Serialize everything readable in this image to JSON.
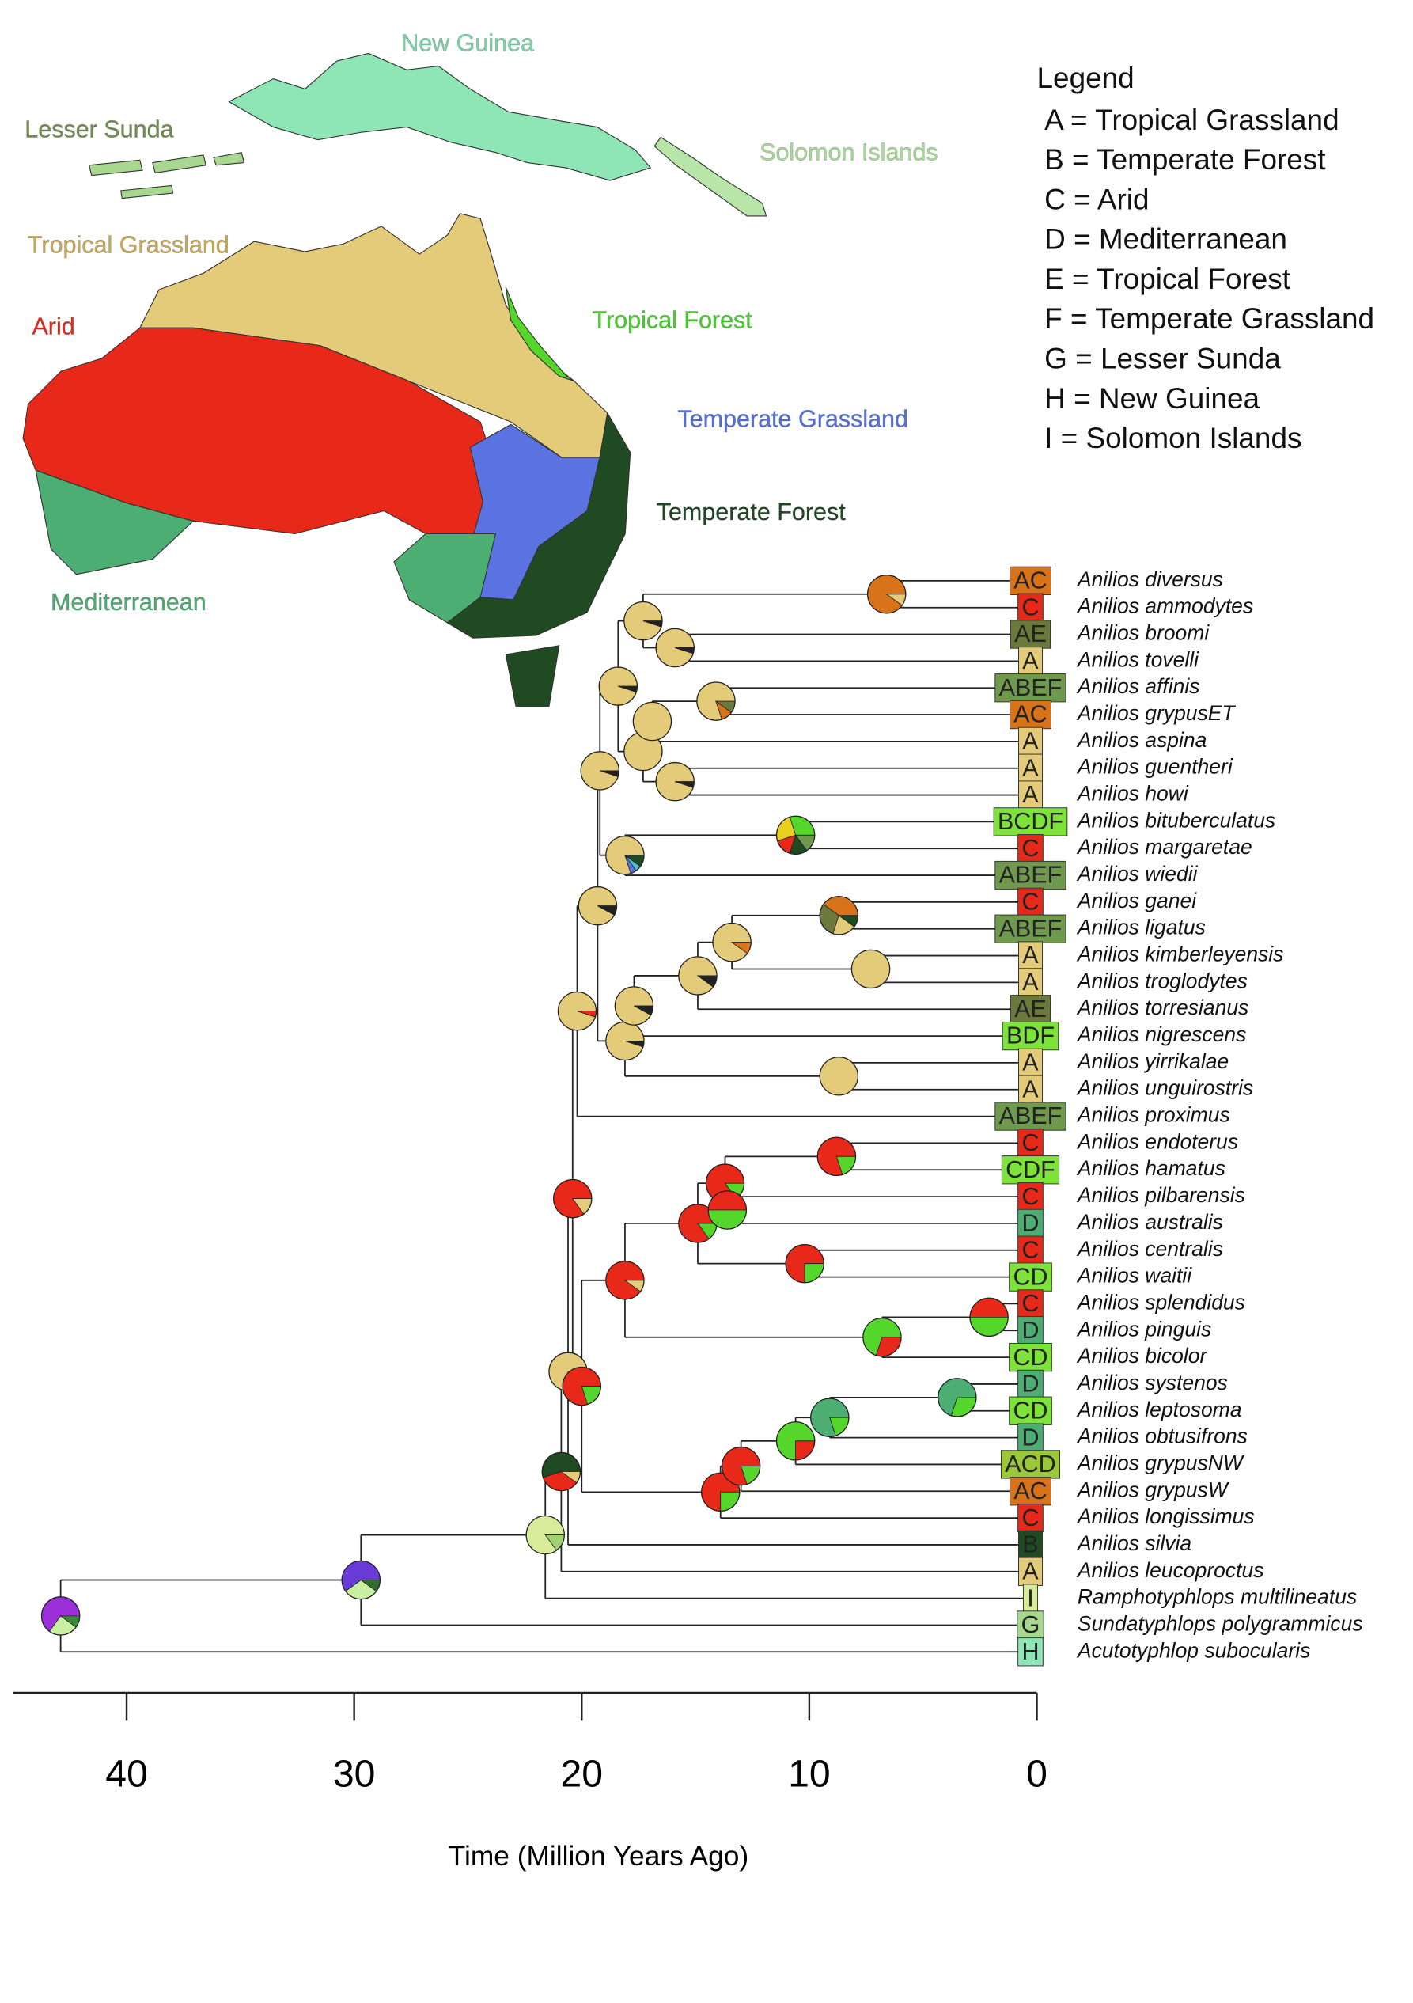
{
  "map": {
    "labels": [
      "New Guinea",
      "Lesser Sunda",
      "Solomon Islands",
      "Tropical Grassland",
      "Arid",
      "Tropical Forest",
      "Temperate Grassland",
      "Temperate Forest",
      "Mediterranean"
    ]
  },
  "legend": {
    "title": "Legend",
    "items": [
      "A = Tropical Grassland",
      "B = Temperate Forest",
      "C = Arid",
      "D = Mediterranean",
      "E = Tropical Forest",
      "F = Temperate Grassland",
      "G = Lesser Sunda",
      "H = New Guinea",
      "I = Solomon Islands"
    ]
  },
  "tree": {
    "tips": [
      {
        "name": "Anilios diversus",
        "area": "AC",
        "color": "#d8731a"
      },
      {
        "name": "Anilios ammodytes",
        "area": "C",
        "color": "#e8291a"
      },
      {
        "name": "Anilios broomi",
        "area": "AE",
        "color": "#6b7a3a"
      },
      {
        "name": "Anilios tovelli",
        "area": "A",
        "color": "#e3cb7a"
      },
      {
        "name": "Anilios affinis",
        "area": "ABEF",
        "color": "#6f9a4d"
      },
      {
        "name": "Anilios grypusET",
        "area": "AC",
        "color": "#d8731a"
      },
      {
        "name": "Anilios aspina",
        "area": "A",
        "color": "#e3cb7a"
      },
      {
        "name": "Anilios guentheri",
        "area": "A",
        "color": "#e3cb7a"
      },
      {
        "name": "Anilios howi",
        "area": "A",
        "color": "#e3cb7a"
      },
      {
        "name": "Anilios bituberculatus",
        "area": "BCDF",
        "color": "#7de23a"
      },
      {
        "name": "Anilios margaretae",
        "area": "C",
        "color": "#e8291a"
      },
      {
        "name": "Anilios wiedii",
        "area": "ABEF",
        "color": "#6f9a4d"
      },
      {
        "name": "Anilios ganei",
        "area": "C",
        "color": "#e8291a"
      },
      {
        "name": "Anilios ligatus",
        "area": "ABEF",
        "color": "#6f9a4d"
      },
      {
        "name": "Anilios kimberleyensis",
        "area": "A",
        "color": "#e3cb7a"
      },
      {
        "name": "Anilios troglodytes",
        "area": "A",
        "color": "#e3cb7a"
      },
      {
        "name": "Anilios torresianus",
        "area": "AE",
        "color": "#6b7a3a"
      },
      {
        "name": "Anilios nigrescens",
        "area": "BDF",
        "color": "#7de23a"
      },
      {
        "name": "Anilios yirrikalae",
        "area": "A",
        "color": "#e3cb7a"
      },
      {
        "name": "Anilios unguirostris",
        "area": "A",
        "color": "#e3cb7a"
      },
      {
        "name": "Anilios proximus",
        "area": "ABEF",
        "color": "#6f9a4d"
      },
      {
        "name": "Anilios endoterus",
        "area": "C",
        "color": "#e8291a"
      },
      {
        "name": "Anilios hamatus",
        "area": "CDF",
        "color": "#7de23a"
      },
      {
        "name": "Anilios pilbarensis",
        "area": "C",
        "color": "#e8291a"
      },
      {
        "name": "Anilios australis",
        "area": "D",
        "color": "#4cae72"
      },
      {
        "name": "Anilios centralis",
        "area": "C",
        "color": "#e8291a"
      },
      {
        "name": "Anilios waitii",
        "area": "CD",
        "color": "#7de23a"
      },
      {
        "name": "Anilios splendidus",
        "area": "C",
        "color": "#e8291a"
      },
      {
        "name": "Anilios pinguis",
        "area": "D",
        "color": "#4cae72"
      },
      {
        "name": "Anilios bicolor",
        "area": "CD",
        "color": "#7de23a"
      },
      {
        "name": "Anilios systenos",
        "area": "D",
        "color": "#4cae72"
      },
      {
        "name": "Anilios leptosoma",
        "area": "CD",
        "color": "#7de23a"
      },
      {
        "name": "Anilios obtusifrons",
        "area": "D",
        "color": "#4cae72"
      },
      {
        "name": "Anilios grypusNW",
        "area": "ACD",
        "color": "#9ac83a"
      },
      {
        "name": "Anilios grypusW",
        "area": "AC",
        "color": "#d8731a"
      },
      {
        "name": "Anilios longissimus",
        "area": "C",
        "color": "#e8291a"
      },
      {
        "name": "Anilios silvia",
        "area": "B",
        "color": "#1f4a22"
      },
      {
        "name": "Anilios leucoproctus",
        "area": "A",
        "color": "#e3cb7a"
      },
      {
        "name": "Ramphotyphlops multilineatus",
        "area": "I",
        "color": "#d8eb9a"
      },
      {
        "name": "Sundatyphlops polygrammicus",
        "area": "G",
        "color": "#a8d890"
      },
      {
        "name": "Acutotyphlop subocularis",
        "area": "H",
        "color": "#8ee6b6"
      }
    ],
    "nodes": [
      {
        "age": 42.9,
        "children": [
          "t40",
          "n1"
        ],
        "pie": [
          {
            "share": 65,
            "color": "#9b30d9"
          },
          {
            "share": 25,
            "color": "#c8f0a0"
          },
          {
            "share": 10,
            "color": "#3a8a3a"
          }
        ]
      },
      {
        "age": 29.7,
        "children": [
          "t39",
          "n2"
        ],
        "pie": [
          {
            "share": 60,
            "color": "#6a3ad9"
          },
          {
            "share": 30,
            "color": "#c8f0a0"
          },
          {
            "share": 10,
            "color": "#2f6f2f"
          }
        ]
      },
      {
        "age": 21.6,
        "children": [
          "t38",
          "n3"
        ],
        "pie": [
          {
            "share": 85,
            "color": "#d8eb9a"
          },
          {
            "share": 15,
            "color": "#a0d070"
          }
        ]
      },
      {
        "age": 20.9,
        "children": [
          "t37",
          "n4"
        ],
        "pie": [
          {
            "share": 55,
            "color": "#1f4a22"
          },
          {
            "share": 35,
            "color": "#e8291a"
          },
          {
            "share": 10,
            "color": "#e3cb7a"
          }
        ]
      },
      {
        "age": 20.6,
        "children": [
          "t36",
          "n5"
        ],
        "pie": [
          {
            "share": 85,
            "color": "#e3cb7a"
          },
          {
            "share": 15,
            "color": "#e8291a"
          }
        ]
      },
      {
        "age": 20.4,
        "children": [
          "n6",
          "n26"
        ],
        "pie": [
          {
            "share": 85,
            "color": "#e8291a"
          },
          {
            "share": 15,
            "color": "#e3cb7a"
          }
        ]
      },
      {
        "age": 20.2,
        "children": [
          "n7",
          "t20"
        ],
        "pie": [
          {
            "share": 95,
            "color": "#e3cb7a"
          },
          {
            "share": 5,
            "color": "#e8291a"
          }
        ]
      },
      {
        "age": 19.3,
        "children": [
          "n8",
          "n19"
        ],
        "pie": [
          {
            "share": 92,
            "color": "#e3cb7a"
          },
          {
            "share": 8,
            "color": "#222222"
          }
        ]
      },
      {
        "age": 19.2,
        "children": [
          "n9",
          "n17"
        ],
        "pie": [
          {
            "share": 95,
            "color": "#e3cb7a"
          },
          {
            "share": 5,
            "color": "#222222"
          }
        ]
      },
      {
        "age": 18.4,
        "children": [
          "n10",
          "n13"
        ],
        "pie": [
          {
            "share": 95,
            "color": "#e3cb7a"
          },
          {
            "share": 5,
            "color": "#222222"
          }
        ]
      },
      {
        "age": 17.3,
        "children": [
          "n11",
          "n12"
        ],
        "pie": [
          {
            "share": 95,
            "color": "#e3cb7a"
          },
          {
            "share": 5,
            "color": "#222222"
          }
        ]
      },
      {
        "age": 6.6,
        "children": [
          "t0",
          "t1"
        ],
        "pie": [
          {
            "share": 90,
            "color": "#d8731a"
          },
          {
            "share": 10,
            "color": "#e3cb7a"
          }
        ]
      },
      {
        "age": 15.9,
        "children": [
          "t2",
          "t3"
        ],
        "pie": [
          {
            "share": 95,
            "color": "#e3cb7a"
          },
          {
            "share": 5,
            "color": "#222222"
          }
        ]
      },
      {
        "age": 17.3,
        "children": [
          "n14",
          "n16"
        ],
        "pie": [
          {
            "share": 100,
            "color": "#e3cb7a"
          }
        ]
      },
      {
        "age": 16.9,
        "children": [
          "n15",
          "t6"
        ],
        "pie": [
          {
            "share": 100,
            "color": "#e3cb7a"
          }
        ]
      },
      {
        "age": 14.1,
        "children": [
          "t4",
          "t5"
        ],
        "pie": [
          {
            "share": 80,
            "color": "#e3cb7a"
          },
          {
            "share": 10,
            "color": "#d8731a"
          },
          {
            "share": 10,
            "color": "#6b7a3a"
          }
        ]
      },
      {
        "age": 15.9,
        "children": [
          "t7",
          "t8"
        ],
        "pie": [
          {
            "share": 95,
            "color": "#e3cb7a"
          },
          {
            "share": 5,
            "color": "#222222"
          }
        ]
      },
      {
        "age": 18.1,
        "children": [
          "n18",
          "t11"
        ],
        "pie": [
          {
            "share": 80,
            "color": "#e3cb7a"
          },
          {
            "share": 5,
            "color": "#5a73e0"
          },
          {
            "share": 5,
            "color": "#4cc0d0"
          },
          {
            "share": 10,
            "color": "#1f4a22"
          }
        ]
      },
      {
        "age": 10.6,
        "children": [
          "t9",
          "t10"
        ],
        "pie": [
          {
            "share": 30,
            "color": "#55d62b"
          },
          {
            "share": 25,
            "color": "#e8d020"
          },
          {
            "share": 15,
            "color": "#e8291a"
          },
          {
            "share": 15,
            "color": "#1f4a22"
          },
          {
            "share": 15,
            "color": "#6f9a4d"
          }
        ]
      },
      {
        "age": 18.1,
        "children": [
          "n20",
          "n25"
        ],
        "pie": [
          {
            "share": 95,
            "color": "#e3cb7a"
          },
          {
            "share": 5,
            "color": "#222222"
          }
        ]
      },
      {
        "age": 17.7,
        "children": [
          "n21",
          "t17"
        ],
        "pie": [
          {
            "share": 92,
            "color": "#e3cb7a"
          },
          {
            "share": 8,
            "color": "#222222"
          }
        ]
      },
      {
        "age": 14.9,
        "children": [
          "n22",
          "t16"
        ],
        "pie": [
          {
            "share": 90,
            "color": "#e3cb7a"
          },
          {
            "share": 10,
            "color": "#222222"
          }
        ]
      },
      {
        "age": 13.4,
        "children": [
          "n23",
          "n24"
        ],
        "pie": [
          {
            "share": 90,
            "color": "#e3cb7a"
          },
          {
            "share": 10,
            "color": "#d8731a"
          }
        ]
      },
      {
        "age": 8.7,
        "children": [
          "t12",
          "t13"
        ],
        "pie": [
          {
            "share": 40,
            "color": "#d8731a"
          },
          {
            "share": 30,
            "color": "#6b7a3a"
          },
          {
            "share": 20,
            "color": "#e3cb7a"
          },
          {
            "share": 10,
            "color": "#1f4a22"
          }
        ]
      },
      {
        "age": 7.3,
        "children": [
          "t14",
          "t15"
        ],
        "pie": [
          {
            "share": 100,
            "color": "#e3cb7a"
          }
        ]
      },
      {
        "age": 8.7,
        "children": [
          "t18",
          "t19"
        ],
        "pie": [
          {
            "share": 100,
            "color": "#e3cb7a"
          }
        ]
      },
      {
        "age": 20.0,
        "children": [
          "n27",
          "n35"
        ],
        "pie": [
          {
            "share": 80,
            "color": "#e8291a"
          },
          {
            "share": 20,
            "color": "#55d62b"
          }
        ]
      },
      {
        "age": 18.1,
        "children": [
          "n28",
          "n33"
        ],
        "pie": [
          {
            "share": 90,
            "color": "#e8291a"
          },
          {
            "share": 10,
            "color": "#e3cb7a"
          }
        ]
      },
      {
        "age": 14.9,
        "children": [
          "n29",
          "n32"
        ],
        "pie": [
          {
            "share": 85,
            "color": "#e8291a"
          },
          {
            "share": 15,
            "color": "#55d62b"
          }
        ]
      },
      {
        "age": 13.7,
        "children": [
          "n30",
          "n31"
        ],
        "pie": [
          {
            "share": 85,
            "color": "#e8291a"
          },
          {
            "share": 15,
            "color": "#55d62b"
          }
        ]
      },
      {
        "age": 8.8,
        "children": [
          "t21",
          "t22"
        ],
        "pie": [
          {
            "share": 80,
            "color": "#e8291a"
          },
          {
            "share": 20,
            "color": "#55d62b"
          }
        ]
      },
      {
        "age": 13.6,
        "children": [
          "t23",
          "t24"
        ],
        "pie": [
          {
            "share": 50,
            "color": "#e8291a"
          },
          {
            "share": 50,
            "color": "#55d62b"
          }
        ]
      },
      {
        "age": 10.2,
        "children": [
          "t25",
          "t26"
        ],
        "pie": [
          {
            "share": 75,
            "color": "#e8291a"
          },
          {
            "share": 25,
            "color": "#55d62b"
          }
        ]
      },
      {
        "age": 6.8,
        "children": [
          "n34",
          "t29"
        ],
        "pie": [
          {
            "share": 70,
            "color": "#55d62b"
          },
          {
            "share": 30,
            "color": "#e8291a"
          }
        ]
      },
      {
        "age": 2.1,
        "children": [
          "t27",
          "t28"
        ],
        "pie": [
          {
            "share": 50,
            "color": "#e8291a"
          },
          {
            "share": 50,
            "color": "#55d62b"
          }
        ]
      },
      {
        "age": 13.9,
        "children": [
          "n36",
          "t35"
        ],
        "pie": [
          {
            "share": 75,
            "color": "#e8291a"
          },
          {
            "share": 25,
            "color": "#55d62b"
          }
        ]
      },
      {
        "age": 13.0,
        "children": [
          "n37",
          "t34"
        ],
        "pie": [
          {
            "share": 80,
            "color": "#e8291a"
          },
          {
            "share": 20,
            "color": "#55d62b"
          }
        ]
      },
      {
        "age": 10.6,
        "children": [
          "n38",
          "t33"
        ],
        "pie": [
          {
            "share": 75,
            "color": "#55d62b"
          },
          {
            "share": 25,
            "color": "#e8291a"
          }
        ]
      },
      {
        "age": 9.1,
        "children": [
          "n39",
          "t32"
        ],
        "pie": [
          {
            "share": 80,
            "color": "#4cae72"
          },
          {
            "share": 20,
            "color": "#55d62b"
          }
        ]
      },
      {
        "age": 3.5,
        "children": [
          "t30",
          "t31"
        ],
        "pie": [
          {
            "share": 70,
            "color": "#4cae72"
          },
          {
            "share": 30,
            "color": "#55d62b"
          }
        ]
      }
    ]
  },
  "axis": {
    "label": "Time (Million Years Ago)",
    "xlim": [
      45,
      0
    ],
    "ticks": [
      40,
      30,
      20,
      10,
      0
    ]
  }
}
